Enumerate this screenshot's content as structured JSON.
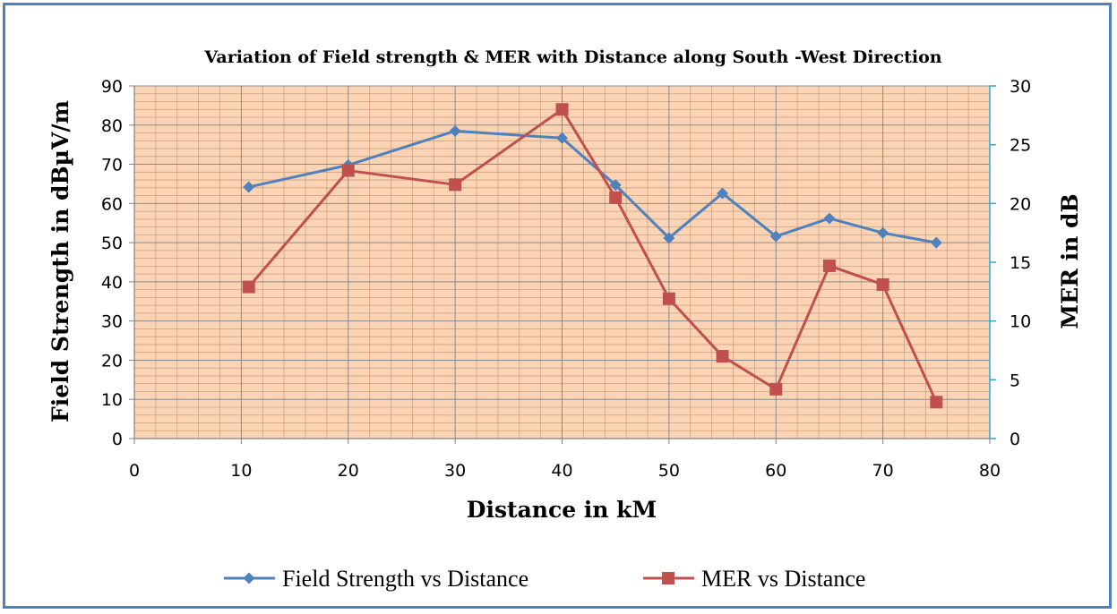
{
  "chart_data": {
    "type": "line",
    "title": "Variation of Field strength & MER with Distance along South -West Direction",
    "xlabel": "Distance in kM",
    "ylabel": "Field Strength in dBµV/m",
    "y2label": "MER in dB",
    "xlim": [
      0,
      80
    ],
    "ylim": [
      0,
      90
    ],
    "y2lim": [
      0,
      30
    ],
    "x_ticks": [
      0,
      10,
      20,
      30,
      40,
      50,
      60,
      70,
      80
    ],
    "y_ticks": [
      0,
      10,
      20,
      30,
      40,
      50,
      60,
      70,
      80,
      90
    ],
    "y2_ticks": [
      0,
      5,
      10,
      15,
      20,
      25,
      30
    ],
    "grid": true,
    "legend_position": "bottom",
    "plot_background": "#fad4b4",
    "series": [
      {
        "name": "Field Strength vs Distance",
        "axis": "left",
        "color": "#4f81bd",
        "marker": "diamond",
        "x": [
          10.7,
          20,
          30,
          40,
          45,
          50,
          55,
          60,
          65,
          70,
          75
        ],
        "y": [
          64.2,
          69.8,
          78.5,
          76.7,
          64.7,
          51.2,
          62.6,
          51.6,
          56.2,
          52.5,
          50.0
        ]
      },
      {
        "name": "MER vs Distance",
        "axis": "right",
        "color": "#c0504d",
        "marker": "square",
        "x": [
          10.7,
          20,
          30,
          40,
          45,
          50,
          55,
          60,
          65,
          70,
          75
        ],
        "y": [
          12.9,
          22.8,
          21.6,
          28.0,
          20.5,
          11.9,
          7.0,
          4.2,
          14.7,
          13.1,
          3.1
        ]
      }
    ]
  }
}
